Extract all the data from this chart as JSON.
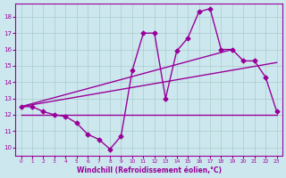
{
  "bg_color": "#cce8ee",
  "grid_color": "#aacccc",
  "line_color": "#990099",
  "marker": "D",
  "markersize": 2.5,
  "linewidth": 1.0,
  "xlim": [
    -0.5,
    23.5
  ],
  "ylim": [
    9.5,
    18.8
  ],
  "yticks": [
    10,
    11,
    12,
    13,
    14,
    15,
    16,
    17,
    18
  ],
  "xticks": [
    0,
    1,
    2,
    3,
    4,
    5,
    6,
    7,
    8,
    9,
    10,
    11,
    12,
    13,
    14,
    15,
    16,
    17,
    18,
    19,
    20,
    21,
    22,
    23
  ],
  "xlabel": "Windchill (Refroidissement éolien,°C)",
  "line1_x": [
    0,
    1,
    2,
    3,
    4,
    5,
    6,
    7,
    8,
    9,
    10,
    11,
    12,
    13,
    14,
    15,
    16,
    17,
    18,
    19,
    20,
    21,
    22,
    23
  ],
  "line1_y": [
    12.5,
    12.5,
    12.2,
    12.0,
    11.9,
    11.5,
    10.8,
    10.5,
    9.9,
    10.7,
    14.7,
    17.0,
    17.0,
    13.0,
    15.9,
    16.7,
    18.3,
    18.5,
    16.0,
    16.0,
    15.3,
    15.3,
    14.3,
    12.2
  ],
  "line2_x": [
    0,
    1,
    2,
    3,
    4,
    5,
    6,
    7,
    8,
    9,
    10,
    11,
    12,
    13,
    14,
    15,
    16,
    17,
    18,
    19,
    20,
    21,
    22,
    23
  ],
  "line2_y": [
    12.0,
    12.0,
    12.0,
    12.0,
    12.0,
    12.0,
    12.0,
    12.0,
    12.0,
    12.0,
    12.0,
    12.0,
    12.0,
    12.0,
    12.0,
    12.0,
    12.0,
    12.0,
    12.0,
    12.0,
    12.0,
    12.0,
    12.0,
    12.0
  ],
  "line3_x": [
    0,
    19
  ],
  "line3_y": [
    12.5,
    16.0
  ],
  "line4_x": [
    0,
    23
  ],
  "line4_y": [
    12.5,
    15.2
  ]
}
